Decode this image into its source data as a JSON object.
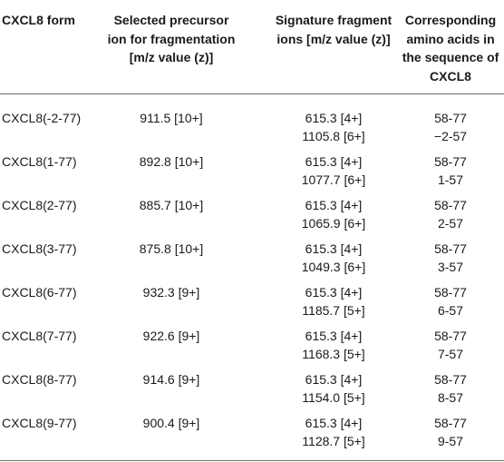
{
  "table": {
    "headers": [
      "CXCL8 form",
      "Selected precursor ion for fragmentation [m/z value (z)]",
      "Signature fragment ions [m/z value (z)]",
      "Corresponding amino acids in the sequence of CXCL8"
    ],
    "rows": [
      {
        "form": "CXCL8(-2-77)",
        "precursor": "911.5 [10+]",
        "fragments": [
          "615.3 [4+]",
          "1105.8 [6+]"
        ],
        "amino": [
          "58-77",
          "−2-57"
        ]
      },
      {
        "form": "CXCL8(1-77)",
        "precursor": "892.8 [10+]",
        "fragments": [
          "615.3 [4+]",
          "1077.7 [6+]"
        ],
        "amino": [
          "58-77",
          "1-57"
        ]
      },
      {
        "form": "CXCL8(2-77)",
        "precursor": "885.7 [10+]",
        "fragments": [
          "615.3 [4+]",
          "1065.9 [6+]"
        ],
        "amino": [
          "58-77",
          "2-57"
        ]
      },
      {
        "form": "CXCL8(3-77)",
        "precursor": "875.8 [10+]",
        "fragments": [
          "615.3 [4+]",
          "1049.3 [6+]"
        ],
        "amino": [
          "58-77",
          "3-57"
        ]
      },
      {
        "form": "CXCL8(6-77)",
        "precursor": "932.3 [9+]",
        "fragments": [
          "615.3 [4+]",
          "1185.7 [5+]"
        ],
        "amino": [
          "58-77",
          "6-57"
        ]
      },
      {
        "form": "CXCL8(7-77)",
        "precursor": "922.6 [9+]",
        "fragments": [
          "615.3 [4+]",
          "1168.3 [5+]"
        ],
        "amino": [
          "58-77",
          "7-57"
        ]
      },
      {
        "form": "CXCL8(8-77)",
        "precursor": "914.6 [9+]",
        "fragments": [
          "615.3 [4+]",
          "1154.0 [5+]"
        ],
        "amino": [
          "58-77",
          "8-57"
        ]
      },
      {
        "form": "CXCL8(9-77)",
        "precursor": "900.4 [9+]",
        "fragments": [
          "615.3 [4+]",
          "1128.7 [5+]"
        ],
        "amino": [
          "58-77",
          "9-57"
        ]
      }
    ]
  }
}
